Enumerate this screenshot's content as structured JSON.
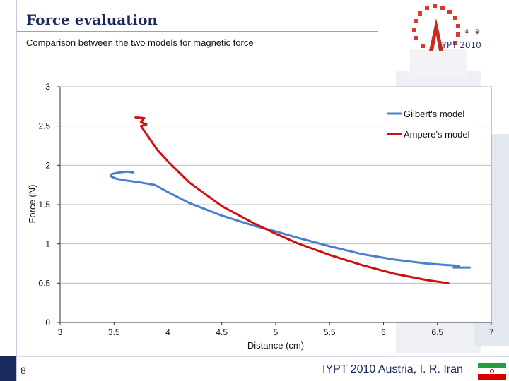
{
  "slide": {
    "title": "Force evaluation",
    "subtitle": "Comparison between the two models for magnetic force",
    "page_number": "8",
    "footer": "IYPT 2010 Austria, I. R. Iran",
    "logo_text": "IYPT 2010"
  },
  "chart_data": {
    "type": "line",
    "title": "",
    "xlabel": "Distance (cm)",
    "ylabel": "Force (N)",
    "xlim": [
      3,
      7
    ],
    "ylim": [
      0,
      3
    ],
    "x_ticks": [
      "3",
      "3.5",
      "4",
      "4.5",
      "5",
      "5.5",
      "6",
      "6.5",
      "7"
    ],
    "y_ticks": [
      "0",
      "0.5",
      "1",
      "1.5",
      "2",
      "2.5",
      "3"
    ],
    "grid": true,
    "legend_position": "top-right",
    "series": [
      {
        "name": "Gilbert's model",
        "color": "#4a7fd0",
        "x": [
          3.68,
          3.62,
          3.55,
          3.48,
          3.47,
          3.52,
          3.6,
          3.75,
          3.88,
          4.0,
          4.2,
          4.5,
          4.8,
          5.0,
          5.2,
          5.5,
          5.8,
          6.1,
          6.4,
          6.6,
          6.7,
          6.65,
          6.72,
          6.8
        ],
        "y": [
          1.91,
          1.92,
          1.91,
          1.89,
          1.86,
          1.83,
          1.81,
          1.78,
          1.75,
          1.66,
          1.52,
          1.36,
          1.23,
          1.16,
          1.08,
          0.97,
          0.87,
          0.8,
          0.75,
          0.73,
          0.72,
          0.7,
          0.7,
          0.7
        ]
      },
      {
        "name": "Ampere's model",
        "color": "#cc1111",
        "x": [
          3.7,
          3.78,
          3.75,
          3.8,
          3.75,
          3.9,
          4.0,
          4.2,
          4.5,
          4.8,
          5.0,
          5.2,
          5.5,
          5.8,
          6.1,
          6.4,
          6.55,
          6.6
        ],
        "y": [
          2.61,
          2.6,
          2.55,
          2.52,
          2.5,
          2.2,
          2.05,
          1.78,
          1.48,
          1.26,
          1.13,
          1.01,
          0.86,
          0.73,
          0.62,
          0.54,
          0.51,
          0.5
        ]
      }
    ]
  }
}
